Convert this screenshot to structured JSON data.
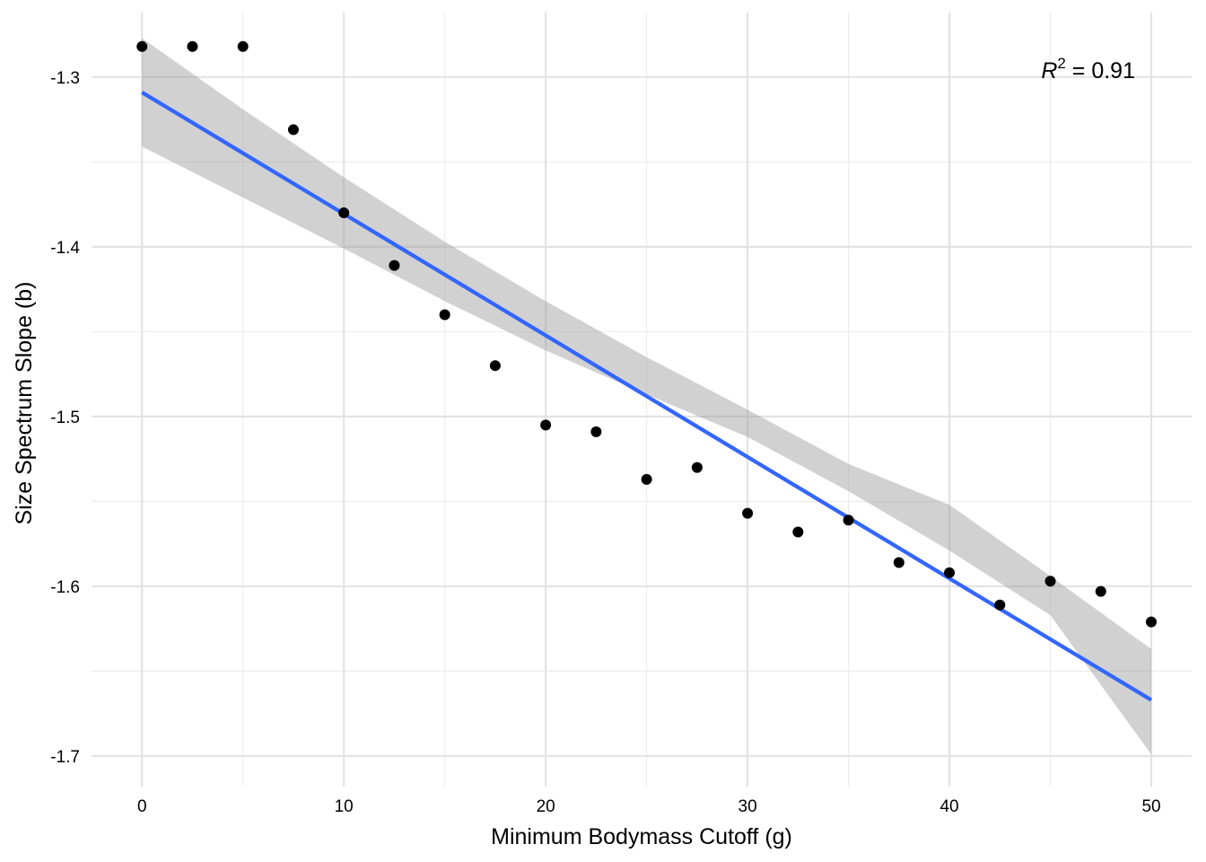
{
  "chart_data": {
    "type": "scatter",
    "title": "",
    "xlabel": "Minimum Bodymass Cutoff (g)",
    "ylabel": "Size Spectrum Slope (b)",
    "xlim": [
      -2.5,
      52
    ],
    "ylim": [
      -1.718,
      -1.262
    ],
    "x_ticks": [
      0,
      10,
      20,
      30,
      40,
      50
    ],
    "x_tick_labels": [
      "0",
      "10",
      "20",
      "30",
      "40",
      "50"
    ],
    "y_ticks": [
      -1.7,
      -1.6,
      -1.5,
      -1.4,
      -1.3
    ],
    "y_tick_labels": [
      "-1.7",
      "-1.6",
      "-1.5",
      "-1.4",
      "-1.3"
    ],
    "grid": true,
    "points": {
      "x": [
        0,
        2.5,
        5,
        7.5,
        10,
        12.5,
        15,
        17.5,
        20,
        22.5,
        25,
        27.5,
        30,
        32.5,
        35,
        37.5,
        40,
        42.5,
        45,
        47.5,
        50
      ],
      "y": [
        -1.282,
        -1.282,
        -1.282,
        -1.331,
        -1.38,
        -1.411,
        -1.44,
        -1.47,
        -1.505,
        -1.509,
        -1.537,
        -1.53,
        -1.557,
        -1.568,
        -1.561,
        -1.586,
        -1.592,
        -1.611,
        -1.597,
        -1.603,
        -1.621
      ],
      "color": "#000000"
    },
    "fit_line": {
      "x": [
        0,
        50
      ],
      "y": [
        -1.309,
        -1.667
      ],
      "color": "#3366FF"
    },
    "confidence_band": {
      "x": [
        0,
        5,
        10,
        15,
        20,
        25,
        30,
        35,
        40,
        45,
        50
      ],
      "lower": [
        -1.341,
        -1.371,
        -1.401,
        -1.432,
        -1.461,
        -1.487,
        -1.512,
        -1.544,
        -1.579,
        -1.617,
        -1.699
      ],
      "upper": [
        -1.277,
        -1.319,
        -1.359,
        -1.397,
        -1.432,
        -1.465,
        -1.496,
        -1.528,
        -1.552,
        -1.594,
        -1.637
      ],
      "color": "#999999"
    },
    "annotation": {
      "r2_letter": "R",
      "r2_exponent": "2",
      "r2_text": " = 0.91"
    }
  }
}
